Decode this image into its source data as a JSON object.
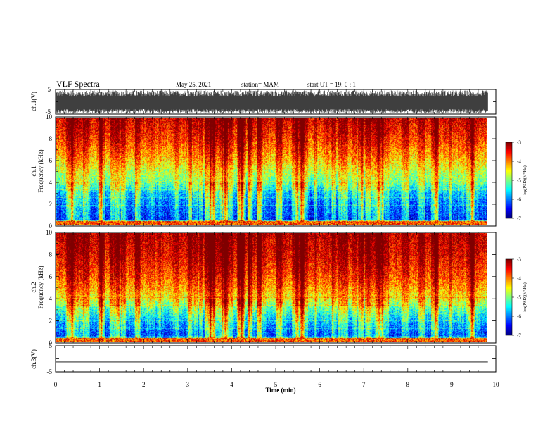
{
  "header": {
    "title": "VLF Spectra",
    "date": "May 25, 2021",
    "station": "station= MAM",
    "start": "start  UT =   19: 0  : 1"
  },
  "chart_data": [
    {
      "type": "line",
      "name": "ch1-waveform",
      "ylabel": "ch.1(V)",
      "yticks": [
        "5",
        "-5"
      ],
      "ylim": [
        -5,
        5
      ],
      "xlim": [
        0,
        10
      ],
      "data_extent_min": 9.82,
      "description_values": {
        "band_min": -4.6,
        "band_max": 4.6,
        "center": -1.0
      }
    },
    {
      "type": "heatmap",
      "name": "ch1-spectrogram",
      "ylabel_lines": [
        "ch.1",
        "Frequency (kHz)"
      ],
      "yticks": [
        "0",
        "2",
        "4",
        "6",
        "8",
        "10"
      ],
      "ylim": [
        0,
        10
      ],
      "xlim": [
        0,
        10
      ],
      "colorbar": {
        "label": "log(PSD)(V²/Hz)",
        "ticks": [
          "-3",
          "-4",
          "-5",
          "-6",
          "-7"
        ],
        "range": [
          -7,
          -3
        ]
      },
      "profile_khz": [
        0,
        0.5,
        1,
        2,
        3,
        4,
        5,
        6,
        7,
        8,
        9,
        10
      ],
      "profile_level": [
        -3.6,
        -6.4,
        -6.3,
        -6.1,
        -5.8,
        -5.1,
        -4.8,
        -4.4,
        -4.1,
        -3.8,
        -3.6,
        -3.4
      ]
    },
    {
      "type": "heatmap",
      "name": "ch2-spectrogram",
      "ylabel_lines": [
        "ch.2",
        "Frequency (kHz)"
      ],
      "yticks": [
        "0",
        "2",
        "4",
        "6",
        "8",
        "10"
      ],
      "ylim": [
        0,
        10
      ],
      "xlim": [
        0,
        10
      ],
      "colorbar": {
        "label": "log(PSD)(V²/Hz)",
        "ticks": [
          "-3",
          "-4",
          "-5",
          "-6",
          "-7"
        ],
        "range": [
          -7,
          -3
        ]
      },
      "profile_khz": [
        0,
        0.5,
        1,
        2,
        3,
        4,
        5,
        6,
        7,
        8,
        9,
        10
      ],
      "profile_level": [
        -3.6,
        -6.3,
        -6.2,
        -5.8,
        -5.3,
        -4.6,
        -4.2,
        -3.9,
        -3.7,
        -3.5,
        -3.4,
        -3.3
      ]
    },
    {
      "type": "line",
      "name": "ch3-waveform",
      "ylabel": "ch.3(V)",
      "yticks": [
        "5",
        "0",
        "-5"
      ],
      "ylim": [
        -5,
        5
      ],
      "xlim": [
        0,
        10
      ],
      "values": [
        {
          "x": 0,
          "y": -1.2
        },
        {
          "x": 9.82,
          "y": -1.2
        }
      ]
    }
  ],
  "xaxis": {
    "label": "Time (min)",
    "ticks": [
      "0",
      "1",
      "2",
      "3",
      "4",
      "5",
      "6",
      "7",
      "8",
      "9",
      "10"
    ],
    "range": [
      0,
      10
    ]
  }
}
